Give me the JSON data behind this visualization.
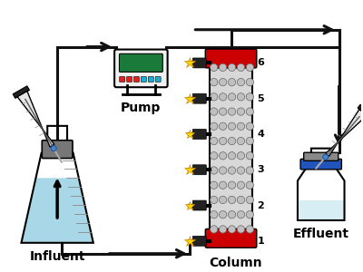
{
  "background_color": "#ffffff",
  "influent_label": "Influent",
  "effluent_label": "Effluent",
  "pump_label": "Pump",
  "column_label": "Column",
  "column_color": "#d0d0d0",
  "column_top_bottom_color": "#cc0000",
  "flask_water_color": "#a8d8e8",
  "star_color": "#ffd700",
  "pipe_color": "#111111",
  "label_fontsize": 9,
  "port_label_fontsize": 7,
  "lw_pipe": 2.0
}
